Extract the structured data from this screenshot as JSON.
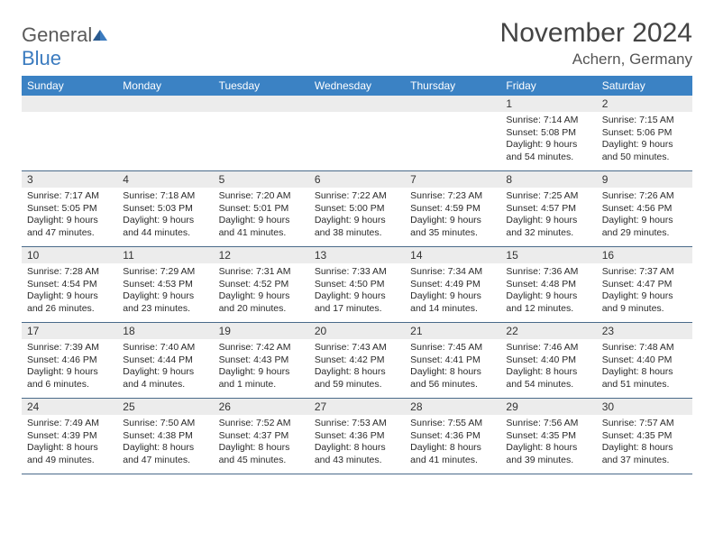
{
  "logo": {
    "general": "General",
    "blue": "Blue"
  },
  "title": "November 2024",
  "location": "Achern, Germany",
  "colors": {
    "header_bg": "#3b82c4",
    "header_text": "#ffffff",
    "daynum_bg": "#ececec",
    "border": "#4a6a8a",
    "body_text": "#2a2a2a",
    "logo_blue": "#3b7bbf"
  },
  "dow": [
    "Sunday",
    "Monday",
    "Tuesday",
    "Wednesday",
    "Thursday",
    "Friday",
    "Saturday"
  ],
  "weeks": [
    [
      null,
      null,
      null,
      null,
      null,
      {
        "n": "1",
        "sr": "Sunrise: 7:14 AM",
        "ss": "Sunset: 5:08 PM",
        "dl1": "Daylight: 9 hours",
        "dl2": "and 54 minutes."
      },
      {
        "n": "2",
        "sr": "Sunrise: 7:15 AM",
        "ss": "Sunset: 5:06 PM",
        "dl1": "Daylight: 9 hours",
        "dl2": "and 50 minutes."
      }
    ],
    [
      {
        "n": "3",
        "sr": "Sunrise: 7:17 AM",
        "ss": "Sunset: 5:05 PM",
        "dl1": "Daylight: 9 hours",
        "dl2": "and 47 minutes."
      },
      {
        "n": "4",
        "sr": "Sunrise: 7:18 AM",
        "ss": "Sunset: 5:03 PM",
        "dl1": "Daylight: 9 hours",
        "dl2": "and 44 minutes."
      },
      {
        "n": "5",
        "sr": "Sunrise: 7:20 AM",
        "ss": "Sunset: 5:01 PM",
        "dl1": "Daylight: 9 hours",
        "dl2": "and 41 minutes."
      },
      {
        "n": "6",
        "sr": "Sunrise: 7:22 AM",
        "ss": "Sunset: 5:00 PM",
        "dl1": "Daylight: 9 hours",
        "dl2": "and 38 minutes."
      },
      {
        "n": "7",
        "sr": "Sunrise: 7:23 AM",
        "ss": "Sunset: 4:59 PM",
        "dl1": "Daylight: 9 hours",
        "dl2": "and 35 minutes."
      },
      {
        "n": "8",
        "sr": "Sunrise: 7:25 AM",
        "ss": "Sunset: 4:57 PM",
        "dl1": "Daylight: 9 hours",
        "dl2": "and 32 minutes."
      },
      {
        "n": "9",
        "sr": "Sunrise: 7:26 AM",
        "ss": "Sunset: 4:56 PM",
        "dl1": "Daylight: 9 hours",
        "dl2": "and 29 minutes."
      }
    ],
    [
      {
        "n": "10",
        "sr": "Sunrise: 7:28 AM",
        "ss": "Sunset: 4:54 PM",
        "dl1": "Daylight: 9 hours",
        "dl2": "and 26 minutes."
      },
      {
        "n": "11",
        "sr": "Sunrise: 7:29 AM",
        "ss": "Sunset: 4:53 PM",
        "dl1": "Daylight: 9 hours",
        "dl2": "and 23 minutes."
      },
      {
        "n": "12",
        "sr": "Sunrise: 7:31 AM",
        "ss": "Sunset: 4:52 PM",
        "dl1": "Daylight: 9 hours",
        "dl2": "and 20 minutes."
      },
      {
        "n": "13",
        "sr": "Sunrise: 7:33 AM",
        "ss": "Sunset: 4:50 PM",
        "dl1": "Daylight: 9 hours",
        "dl2": "and 17 minutes."
      },
      {
        "n": "14",
        "sr": "Sunrise: 7:34 AM",
        "ss": "Sunset: 4:49 PM",
        "dl1": "Daylight: 9 hours",
        "dl2": "and 14 minutes."
      },
      {
        "n": "15",
        "sr": "Sunrise: 7:36 AM",
        "ss": "Sunset: 4:48 PM",
        "dl1": "Daylight: 9 hours",
        "dl2": "and 12 minutes."
      },
      {
        "n": "16",
        "sr": "Sunrise: 7:37 AM",
        "ss": "Sunset: 4:47 PM",
        "dl1": "Daylight: 9 hours",
        "dl2": "and 9 minutes."
      }
    ],
    [
      {
        "n": "17",
        "sr": "Sunrise: 7:39 AM",
        "ss": "Sunset: 4:46 PM",
        "dl1": "Daylight: 9 hours",
        "dl2": "and 6 minutes."
      },
      {
        "n": "18",
        "sr": "Sunrise: 7:40 AM",
        "ss": "Sunset: 4:44 PM",
        "dl1": "Daylight: 9 hours",
        "dl2": "and 4 minutes."
      },
      {
        "n": "19",
        "sr": "Sunrise: 7:42 AM",
        "ss": "Sunset: 4:43 PM",
        "dl1": "Daylight: 9 hours",
        "dl2": "and 1 minute."
      },
      {
        "n": "20",
        "sr": "Sunrise: 7:43 AM",
        "ss": "Sunset: 4:42 PM",
        "dl1": "Daylight: 8 hours",
        "dl2": "and 59 minutes."
      },
      {
        "n": "21",
        "sr": "Sunrise: 7:45 AM",
        "ss": "Sunset: 4:41 PM",
        "dl1": "Daylight: 8 hours",
        "dl2": "and 56 minutes."
      },
      {
        "n": "22",
        "sr": "Sunrise: 7:46 AM",
        "ss": "Sunset: 4:40 PM",
        "dl1": "Daylight: 8 hours",
        "dl2": "and 54 minutes."
      },
      {
        "n": "23",
        "sr": "Sunrise: 7:48 AM",
        "ss": "Sunset: 4:40 PM",
        "dl1": "Daylight: 8 hours",
        "dl2": "and 51 minutes."
      }
    ],
    [
      {
        "n": "24",
        "sr": "Sunrise: 7:49 AM",
        "ss": "Sunset: 4:39 PM",
        "dl1": "Daylight: 8 hours",
        "dl2": "and 49 minutes."
      },
      {
        "n": "25",
        "sr": "Sunrise: 7:50 AM",
        "ss": "Sunset: 4:38 PM",
        "dl1": "Daylight: 8 hours",
        "dl2": "and 47 minutes."
      },
      {
        "n": "26",
        "sr": "Sunrise: 7:52 AM",
        "ss": "Sunset: 4:37 PM",
        "dl1": "Daylight: 8 hours",
        "dl2": "and 45 minutes."
      },
      {
        "n": "27",
        "sr": "Sunrise: 7:53 AM",
        "ss": "Sunset: 4:36 PM",
        "dl1": "Daylight: 8 hours",
        "dl2": "and 43 minutes."
      },
      {
        "n": "28",
        "sr": "Sunrise: 7:55 AM",
        "ss": "Sunset: 4:36 PM",
        "dl1": "Daylight: 8 hours",
        "dl2": "and 41 minutes."
      },
      {
        "n": "29",
        "sr": "Sunrise: 7:56 AM",
        "ss": "Sunset: 4:35 PM",
        "dl1": "Daylight: 8 hours",
        "dl2": "and 39 minutes."
      },
      {
        "n": "30",
        "sr": "Sunrise: 7:57 AM",
        "ss": "Sunset: 4:35 PM",
        "dl1": "Daylight: 8 hours",
        "dl2": "and 37 minutes."
      }
    ]
  ]
}
